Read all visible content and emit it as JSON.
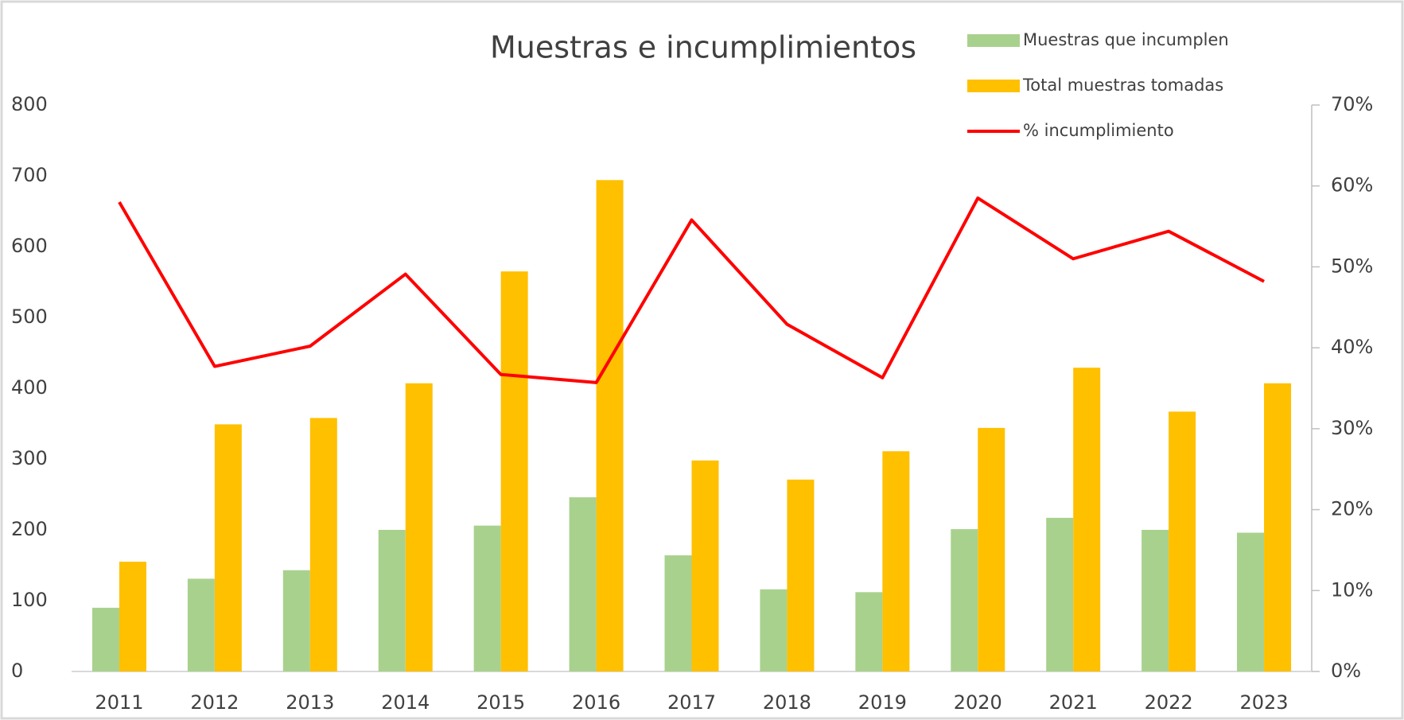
{
  "chart_data": {
    "type": "bar_line",
    "title": "Muestras e incumplimientos",
    "categories": [
      "2011",
      "2012",
      "2013",
      "2014",
      "2015",
      "2016",
      "2017",
      "2018",
      "2019",
      "2020",
      "2021",
      "2022",
      "2023"
    ],
    "series": [
      {
        "name": "Muestras que incumplen",
        "type": "bar",
        "color": "#a9d18e",
        "values": [
          90,
          131,
          143,
          200,
          206,
          246,
          164,
          116,
          112,
          201,
          217,
          200,
          196
        ]
      },
      {
        "name": "Total muestras tomadas",
        "type": "bar",
        "color": "#ffc000",
        "values": [
          155,
          349,
          358,
          407,
          565,
          694,
          298,
          271,
          311,
          344,
          429,
          367,
          407
        ]
      },
      {
        "name": "% incumplimiento",
        "type": "line",
        "axis": "y2",
        "color": "#ff0000",
        "values": [
          58.0,
          37.7,
          40.2,
          49.1,
          36.7,
          35.7,
          55.8,
          42.9,
          36.3,
          58.5,
          51.0,
          54.4,
          48.2
        ]
      }
    ],
    "ylim": [
      0,
      800
    ],
    "yticks": [
      0,
      100,
      200,
      300,
      400,
      500,
      600,
      700,
      800
    ],
    "y2lim": [
      0,
      70
    ],
    "y2ticks": [
      {
        "value": 0,
        "label": "0%"
      },
      {
        "value": 10,
        "label": "10%"
      },
      {
        "value": 20,
        "label": "20%"
      },
      {
        "value": 30,
        "label": "30%"
      },
      {
        "value": 40,
        "label": "40%"
      },
      {
        "value": 50,
        "label": "50%"
      },
      {
        "value": 60,
        "label": "60%"
      },
      {
        "value": 70,
        "label": "70%"
      }
    ],
    "legend": "top-right",
    "grid": false
  }
}
